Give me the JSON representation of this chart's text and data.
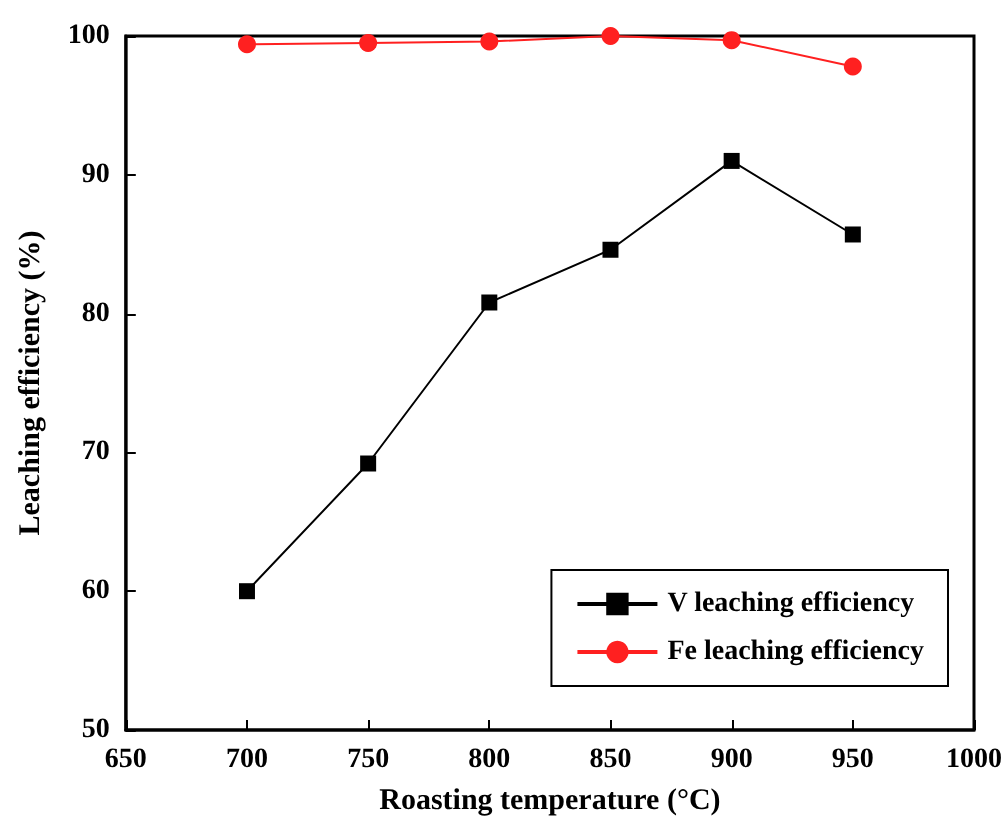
{
  "chart_data": {
    "type": "line",
    "xlabel": "Roasting temperature (°C)",
    "ylabel": "Leaching efficiency (%)",
    "x": [
      700,
      750,
      800,
      850,
      900,
      950
    ],
    "series": [
      {
        "name": "V leaching efficiency",
        "color": "#000000",
        "marker": "square",
        "values": [
          60,
          69.2,
          80.8,
          84.6,
          91.0,
          85.7
        ]
      },
      {
        "name": "Fe leaching efficiency",
        "color": "#ff2020",
        "marker": "circle",
        "values": [
          99.4,
          99.5,
          99.6,
          100,
          99.7,
          97.8
        ]
      }
    ],
    "xlim": [
      650,
      1000
    ],
    "xticks": [
      650,
      700,
      750,
      800,
      850,
      900,
      950,
      1000
    ],
    "ylim": [
      50,
      100
    ],
    "yticks": [
      50,
      60,
      70,
      80,
      90,
      100
    ],
    "grid": false,
    "legend": "bottom right",
    "line_style": "solid"
  }
}
